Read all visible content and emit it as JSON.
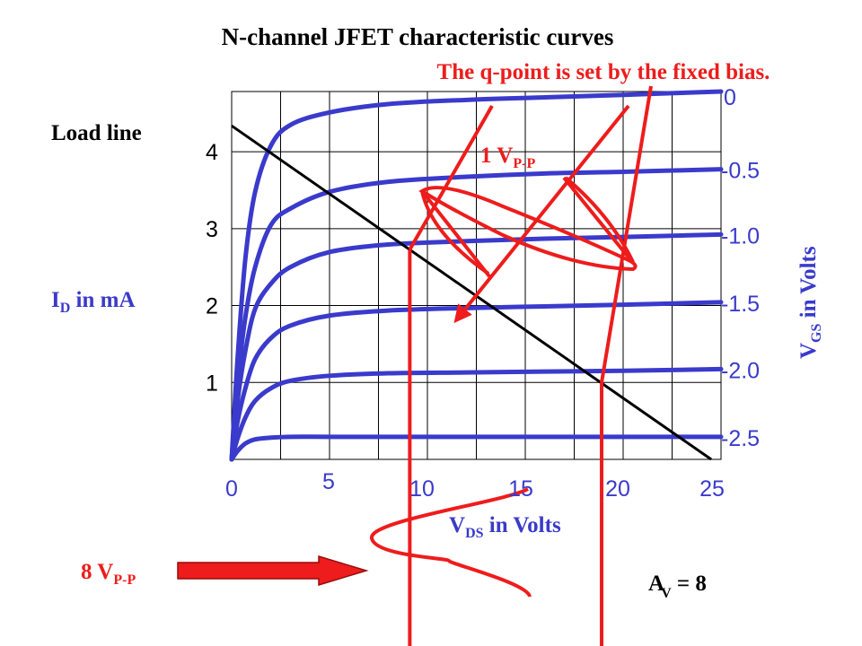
{
  "title": "N-channel JFET characteristic curves",
  "qpoint_note": "The q-point is set by the fixed bias.",
  "load_line_label": "Load line",
  "id_label_main": "I",
  "id_label_sub": "D",
  "id_label_rest": " in mA",
  "vds_label_main": "V",
  "vds_label_sub": "DS",
  "vds_label_rest": " in Volts",
  "vgs_label_main": "V",
  "vgs_label_sub": "GS",
  "vgs_label_rest": " in Volts",
  "input_swing_main": "1 V",
  "input_swing_sub": "P-P",
  "output_swing_main": "8 V",
  "output_swing_sub": "P-P",
  "gain_main": "A",
  "gain_sub": "V",
  "gain_rest": " = 8",
  "colors": {
    "curve": "#3a3acc",
    "red": "#ee1c1c",
    "load_line": "#000000",
    "grid": "#000000",
    "label_blue": "#3a3acc"
  },
  "chart_data": {
    "type": "line",
    "title": "N-channel JFET characteristic curves",
    "xlabel": "VDS in Volts",
    "ylabel": "ID in mA",
    "right_label": "VGS in Volts",
    "xlim": [
      0,
      25
    ],
    "ylim": [
      0,
      4.4
    ],
    "grid": true,
    "x_ticks": [
      "0",
      "5",
      "10",
      "15",
      "20",
      "25"
    ],
    "y_ticks": [
      "1",
      "2",
      "3",
      "4"
    ],
    "series": [
      {
        "name": "0",
        "x": [
          0,
          0.3,
          0.7,
          1.2,
          2,
          3,
          5,
          8,
          12,
          16,
          20,
          25
        ],
        "y": [
          0,
          1.2,
          2.4,
          3.2,
          3.75,
          4.0,
          4.15,
          4.25,
          4.3,
          4.33,
          4.36,
          4.4
        ]
      },
      {
        "name": "-0.5",
        "x": [
          0,
          0.3,
          0.7,
          1.2,
          2,
          3,
          5,
          8,
          12,
          16,
          20,
          25
        ],
        "y": [
          0,
          0.9,
          1.7,
          2.3,
          2.8,
          3.0,
          3.2,
          3.32,
          3.38,
          3.42,
          3.44,
          3.47
        ]
      },
      {
        "name": "-1.0",
        "x": [
          0,
          0.3,
          0.7,
          1.2,
          2,
          3,
          5,
          8,
          12,
          16,
          20,
          25
        ],
        "y": [
          0,
          0.7,
          1.3,
          1.8,
          2.1,
          2.3,
          2.48,
          2.57,
          2.61,
          2.64,
          2.66,
          2.69
        ]
      },
      {
        "name": "-1.5",
        "x": [
          0,
          0.3,
          0.7,
          1.2,
          2,
          3,
          5,
          8,
          12,
          16,
          20,
          25
        ],
        "y": [
          0,
          0.45,
          0.85,
          1.2,
          1.45,
          1.6,
          1.72,
          1.78,
          1.81,
          1.83,
          1.85,
          1.88
        ]
      },
      {
        "name": "-2.0",
        "x": [
          0,
          0.3,
          0.7,
          1.2,
          2,
          3,
          5,
          8,
          12,
          16,
          20,
          25
        ],
        "y": [
          0,
          0.25,
          0.5,
          0.7,
          0.85,
          0.94,
          1.0,
          1.03,
          1.04,
          1.05,
          1.06,
          1.08
        ]
      },
      {
        "name": "-2.5",
        "x": [
          0,
          0.3,
          0.7,
          1.2,
          2,
          3,
          5,
          8,
          12,
          16,
          20,
          25
        ],
        "y": [
          0,
          0.1,
          0.19,
          0.24,
          0.26,
          0.27,
          0.27,
          0.27,
          0.27,
          0.27,
          0.27,
          0.27
        ]
      }
    ],
    "load_line": {
      "x": [
        0,
        24.5
      ],
      "y": [
        3.99,
        0
      ]
    },
    "q_points": [
      {
        "x": 9.1,
        "y": 2.51
      },
      {
        "x": 18.9,
        "y": 0.92
      }
    ],
    "av": 8
  }
}
